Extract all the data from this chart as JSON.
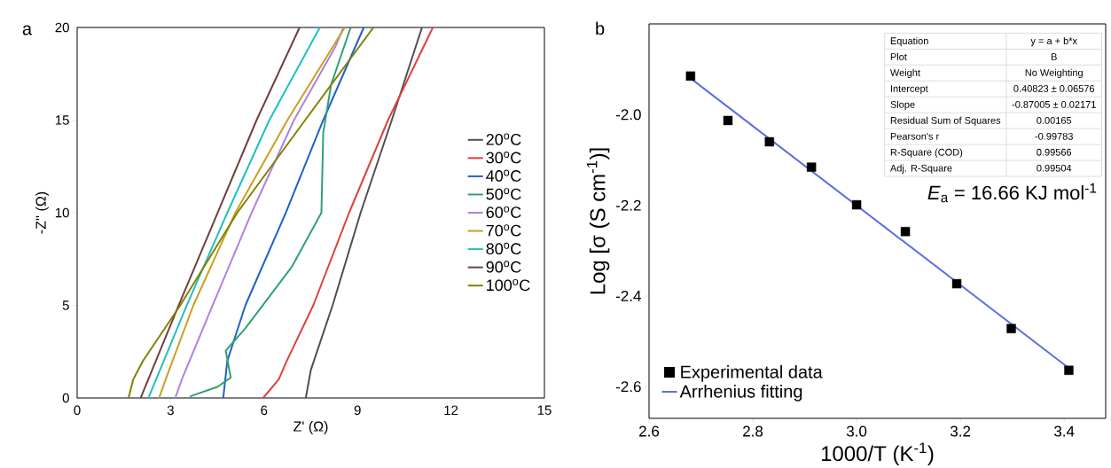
{
  "chart_data": [
    {
      "type": "line",
      "title": "a",
      "xlabel": "Z' (Ω)",
      "ylabel": "-Z'' (Ω)",
      "xlim": [
        0,
        15
      ],
      "ylim": [
        0,
        20
      ],
      "xticks": [
        0,
        3,
        6,
        9,
        12,
        15
      ],
      "yticks": [
        0,
        5,
        10,
        15,
        20
      ],
      "legend": "right",
      "series": [
        {
          "name": "20$^{o}$C",
          "color": "#505050",
          "x": [
            7.34,
            7.5,
            8.2,
            9.1,
            10.1,
            11.07
          ],
          "values": [
            0,
            1.5,
            5,
            10,
            15,
            20
          ]
        },
        {
          "name": "30$^{o}$C",
          "color": "#e04040",
          "x": [
            5.97,
            6.47,
            6.73,
            7.58,
            8.73,
            9.98,
            11.42
          ],
          "values": [
            0,
            1,
            2,
            5,
            10,
            15,
            20
          ]
        },
        {
          "name": "40$^{o}$C",
          "color": "#2060c8",
          "x": [
            4.69,
            4.82,
            5.4,
            6.7,
            7.9,
            9.2
          ],
          "values": [
            0,
            2,
            5,
            10,
            15,
            20
          ]
        },
        {
          "name": "50$^{o}$C",
          "color": "#30a070",
          "x": [
            3.62,
            3.65,
            4.5,
            4.93,
            4.77,
            5.4,
            6.9,
            7.84,
            7.9,
            8.15,
            8.78
          ],
          "values": [
            0,
            0.1,
            0.6,
            1.1,
            2.55,
            3.76,
            7.1,
            10,
            14.3,
            16.9,
            20
          ]
        },
        {
          "name": "60$^{o}$C",
          "color": "#b080e0",
          "x": [
            3.15,
            3.36,
            4.35,
            5.6,
            6.96,
            8.3,
            8.55
          ],
          "values": [
            0,
            1,
            5,
            10,
            15,
            19,
            20
          ]
        },
        {
          "name": "70$^{o}$C",
          "color": "#c8a020",
          "x": [
            2.63,
            2.84,
            3.73,
            5.08,
            6.75,
            8.59
          ],
          "values": [
            0,
            1,
            5,
            10,
            15,
            20
          ]
        },
        {
          "name": "80$^{o}$C",
          "color": "#20c0c0",
          "x": [
            2.29,
            3.52,
            4.82,
            6.17,
            7.79
          ],
          "values": [
            0,
            5,
            10,
            15,
            20
          ]
        },
        {
          "name": "90$^{o}$C",
          "color": "#704040",
          "x": [
            2.04,
            3.26,
            4.51,
            5.76,
            7.14
          ],
          "values": [
            0,
            5,
            10,
            15,
            20
          ]
        },
        {
          "name": "100$^{o}$C",
          "color": "#808000",
          "x": [
            1.65,
            1.8,
            2.11,
            3.31,
            5.14,
            7.32,
            9.51
          ],
          "values": [
            0,
            1,
            2,
            5,
            10,
            15,
            20
          ]
        }
      ]
    },
    {
      "type": "scatter",
      "title": "b",
      "xlabel": "1000/T (K$^{-1}$)",
      "ylabel": "Log [σ (S cm$^{-1}$)]",
      "xlim": [
        2.6,
        3.48
      ],
      "ylim": [
        -2.67,
        -1.8
      ],
      "xticks": [
        2.6,
        2.8,
        {
          "value": 3.0,
          "label": "3.0"
        },
        3.2,
        3.4
      ],
      "yticks": [
        -2.6,
        -2.4,
        -2.2,
        {
          "value": -2.0,
          "label": "-2.0"
        }
      ],
      "legend": "bottom left",
      "annotations": [
        "*E*$_{a}$ = 16.66 KJ mol$^{-1}$",
        "Equation",
        "y = a + b*x",
        "Plot",
        "B",
        "Weight",
        "No Weighting",
        "Intercept",
        "0.40823 ± 0.06576",
        "Slope",
        "-0.87005 ± 0.02171",
        "Residual Sum of Squares",
        "0.00165",
        "Pearson's r",
        "-0.99783",
        "R-Square (COD)",
        "0.99566",
        "Adj. R-Square",
        "0.99504"
      ],
      "series": [
        {
          "name": "Experimental data",
          "type": "scatter",
          "marker": "square",
          "color": "#000000",
          "x": [
            2.68,
            2.752,
            2.832,
            2.913,
            3.0,
            3.094,
            3.193,
            3.298,
            3.409
          ],
          "values": [
            -1.915,
            -2.013,
            -2.06,
            -2.116,
            -2.199,
            -2.258,
            -2.373,
            -2.472,
            -2.564
          ]
        },
        {
          "name": "Arrhenius fitting",
          "type": "line",
          "color": "#5b6ee1",
          "x": [
            2.68,
            3.41
          ],
          "values": [
            -1.92,
            -2.56
          ]
        }
      ]
    }
  ]
}
